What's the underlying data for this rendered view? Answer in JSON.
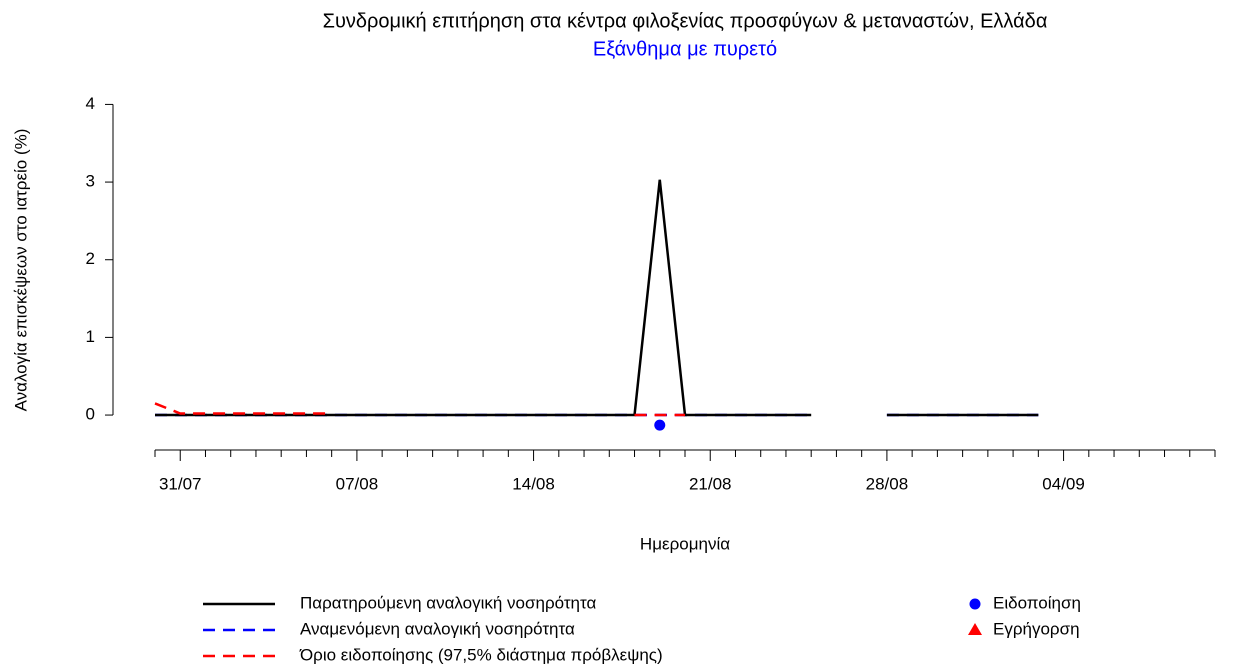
{
  "chart_data": {
    "type": "line",
    "title": "Συνδρομική επιτήρηση στα κέντρα φιλοξενίας προσφύγων & μεταναστών, Ελλάδα",
    "subtitle": "Εξάνθημα με πυρετό",
    "subtitle_color": "#0000ff",
    "x_label": "Ημερομηνία",
    "y_label": "Αναλογία επισκέψεων στο ιατρείο (%)",
    "categories": [
      null,
      "31/07",
      null,
      null,
      null,
      null,
      null,
      null,
      "07/08",
      null,
      null,
      null,
      null,
      null,
      null,
      "14/08",
      null,
      null,
      null,
      null,
      null,
      null,
      "21/08",
      null,
      null,
      null,
      null,
      null,
      null,
      "28/08",
      null,
      null,
      null,
      null,
      null,
      null,
      "04/09",
      null,
      null,
      null,
      null,
      null,
      null
    ],
    "ylim": [
      -0.45,
      4.25
    ],
    "yticks": [
      0,
      1,
      2,
      3,
      4
    ],
    "series": [
      {
        "name": "Αναμενόμενη αναλογική νοσηρότητα",
        "color": "#0000ff",
        "style": "dashed",
        "values": [
          0,
          0,
          0,
          0,
          0,
          0,
          0,
          0,
          0,
          0,
          0,
          0,
          0,
          0,
          0,
          0,
          0,
          0,
          0,
          0,
          0,
          0,
          0,
          0,
          0,
          0,
          0,
          null,
          null,
          0,
          0,
          0,
          0,
          0,
          0,
          0,
          null,
          null,
          null,
          null,
          null,
          null,
          null
        ]
      },
      {
        "name": "Παρατηρούμενη αναλογική νοσηρότητα",
        "color": "#000000",
        "style": "solid",
        "values": [
          0,
          0,
          0,
          0,
          0,
          0,
          0,
          0,
          0,
          0,
          0,
          0,
          0,
          0,
          0,
          0,
          0,
          0,
          0,
          0,
          3.03,
          0,
          0,
          0,
          0,
          0,
          0,
          null,
          null,
          0,
          0,
          0,
          0,
          0,
          0,
          0,
          null,
          null,
          null,
          null,
          null,
          null,
          null
        ]
      },
      {
        "name": "Όριο ειδοποίησης (97,5% διάστημα πρόβλεψης)",
        "color": "#ff0000",
        "style": "dashed",
        "values": [
          0.15,
          0.02,
          0.02,
          0.02,
          0.02,
          0.02,
          0.02,
          0.02,
          null,
          null,
          null,
          null,
          null,
          null,
          null,
          null,
          null,
          null,
          null,
          0,
          0,
          0,
          null,
          null,
          null,
          null,
          null,
          null,
          null,
          null,
          null,
          null,
          null,
          null,
          null,
          null,
          null,
          null,
          null,
          null,
          null,
          null,
          null
        ]
      },
      {
        "name": "Ειδοποίηση",
        "color": "#0000ff",
        "style": "circle",
        "values": [
          null,
          null,
          null,
          null,
          null,
          null,
          null,
          null,
          null,
          null,
          null,
          null,
          null,
          null,
          null,
          null,
          null,
          null,
          null,
          null,
          -0.13,
          null,
          null,
          null,
          null,
          null,
          null,
          null,
          null,
          null,
          null,
          null,
          null,
          null,
          null,
          null,
          null,
          null,
          null,
          null,
          null,
          null,
          null
        ]
      },
      {
        "name": "Εγρήγορση",
        "color": "#ff0000",
        "style": "triangle",
        "values": [
          null,
          null,
          null,
          null,
          null,
          null,
          null,
          null,
          null,
          null,
          null,
          null,
          null,
          null,
          null,
          null,
          null,
          null,
          null,
          null,
          null,
          null,
          null,
          null,
          null,
          null,
          null,
          null,
          null,
          null,
          null,
          null,
          null,
          null,
          null,
          null,
          null,
          null,
          null,
          null,
          null,
          null,
          null
        ]
      }
    ]
  }
}
